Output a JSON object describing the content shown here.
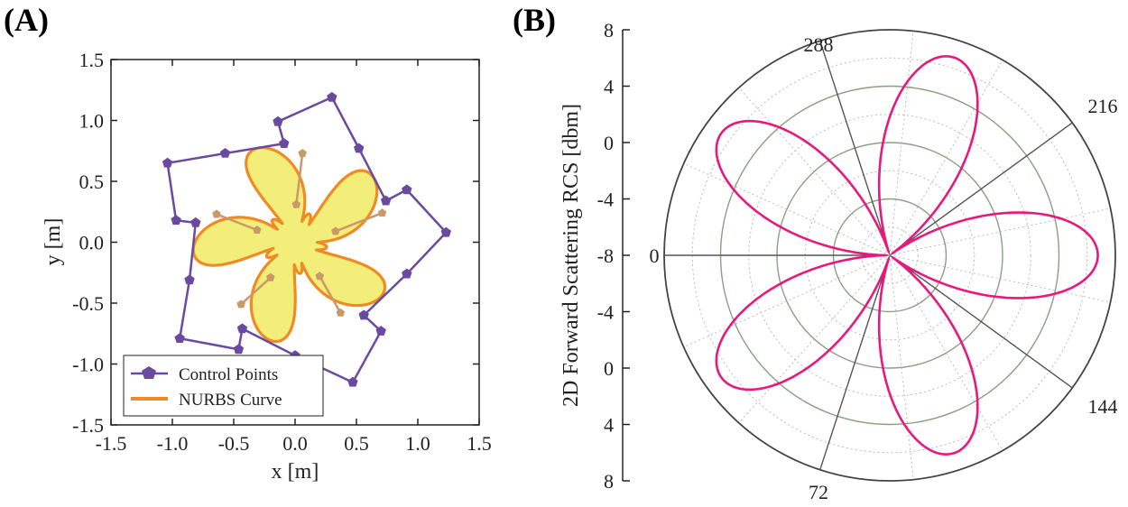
{
  "chart_data": [
    {
      "panel": "(A)",
      "type": "scatter",
      "xlabel": "x [m]",
      "ylabel": "y [m]",
      "xlim": [
        -1.5,
        1.5
      ],
      "ylim": [
        -1.5,
        1.5
      ],
      "xticks": [
        -1.5,
        -1.0,
        -0.5,
        0.0,
        0.5,
        1.0,
        1.5
      ],
      "yticks": [
        -1.5,
        -1.0,
        -0.5,
        0.0,
        0.5,
        1.0,
        1.5
      ],
      "xtick_labels": [
        "-1.5",
        "-1.0",
        "-0.5",
        "0.0",
        "0.5",
        "1.0",
        "1.5"
      ],
      "ytick_labels": [
        "-1.5",
        "-1.0",
        "-0.5",
        "0.0",
        "0.5",
        "1.0",
        "1.5"
      ],
      "legend": [
        "Control Points",
        "NURBS Curve"
      ],
      "legend_position": "bottom-left",
      "colors": {
        "control": "#6a4aa0",
        "curve": "#f08a24",
        "fill": "#f3ee7a",
        "inner": "#c89a6a"
      },
      "series": [
        {
          "name": "Control Points",
          "points": [
            [
              0.3,
              1.19
            ],
            [
              0.52,
              0.77
            ],
            [
              0.74,
              0.34
            ],
            [
              0.91,
              0.43
            ],
            [
              1.23,
              0.08
            ],
            [
              0.91,
              -0.26
            ],
            [
              0.56,
              -0.6
            ],
            [
              0.7,
              -0.73
            ],
            [
              0.47,
              -1.15
            ],
            [
              0.0,
              -0.93
            ],
            [
              -0.43,
              -0.71
            ],
            [
              -0.46,
              -0.88
            ],
            [
              -0.94,
              -0.79
            ],
            [
              -0.86,
              -0.31
            ],
            [
              -0.81,
              0.16
            ],
            [
              -0.97,
              0.18
            ],
            [
              -1.04,
              0.65
            ],
            [
              -0.57,
              0.73
            ],
            [
              -0.09,
              0.81
            ],
            [
              -0.14,
              0.99
            ]
          ]
        },
        {
          "name": "Inner Control Points",
          "points": [
            [
              0.06,
              0.73
            ],
            [
              0.01,
              0.31
            ],
            [
              0.71,
              0.24
            ],
            [
              0.33,
              0.09
            ],
            [
              0.37,
              -0.58
            ],
            [
              0.2,
              -0.28
            ],
            [
              -0.44,
              -0.51
            ],
            [
              -0.2,
              -0.29
            ],
            [
              -0.64,
              0.23
            ],
            [
              -0.31,
              0.1
            ]
          ]
        }
      ]
    },
    {
      "panel": "(B)",
      "type": "line",
      "subtype": "polar",
      "ylabel": "2D Forward Scattering RCS [dbm]",
      "radial_range": [
        -8,
        8
      ],
      "radial_ticks": [
        8,
        4,
        0,
        -4,
        -8,
        -4,
        0,
        4,
        8
      ],
      "radial_tick_labels": [
        "8",
        "4",
        "0",
        "-4",
        "-8",
        "-4",
        "0",
        "4",
        "8"
      ],
      "angle_labels": [
        "288",
        "216",
        "0",
        "144",
        "72"
      ],
      "angles_deg": [
        288,
        216,
        0,
        144,
        72
      ],
      "series": [
        {
          "name": "RCS",
          "color": "#e8197d",
          "lobes": 5,
          "lobe_centers_deg": [
            36,
            108,
            180,
            252,
            324
          ],
          "peak_db": 6.5,
          "null_db": -8
        }
      ]
    }
  ],
  "panelA": {
    "label": "(A)",
    "xlabel": "x [m]",
    "ylabel": "y [m]",
    "legend": {
      "control": "Control Points",
      "curve": "NURBS Curve"
    }
  },
  "panelB": {
    "label": "(B)",
    "ylabel": "2D Forward Scattering RCS [dbm]",
    "angles": {
      "a288": "288",
      "a216": "216",
      "a0": "0",
      "a144": "144",
      "a72": "72"
    }
  }
}
